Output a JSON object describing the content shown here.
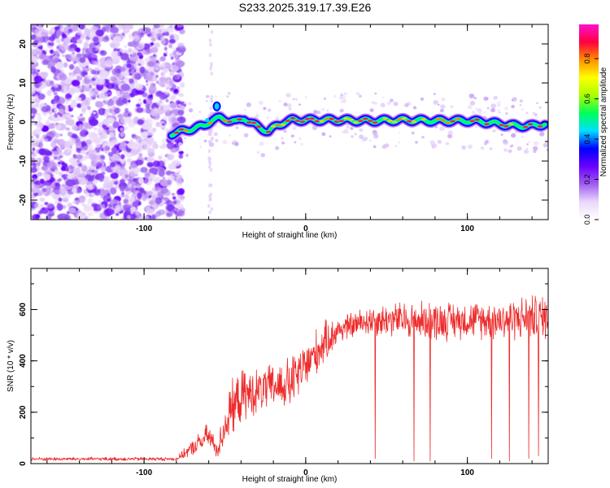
{
  "figure_title": "S233.2025.319.17.39.E26",
  "chart_data": [
    {
      "type": "heatmap",
      "xlabel": "Height of straight line (km)",
      "ylabel": "Frequency (Hz)",
      "xlim": [
        -170,
        150
      ],
      "ylim": [
        -25,
        25
      ],
      "xticks": [
        -100,
        0,
        100
      ],
      "yticks": [
        -20,
        -10,
        0,
        10,
        20
      ],
      "colorbar": {
        "label": "Normalized spectral amplitude",
        "range": [
          0,
          0.97
        ],
        "ticks": [
          0.0,
          0.2,
          0.4,
          0.6,
          0.8
        ],
        "colors": [
          "#ffffff",
          "#e9d8fb",
          "#a05cf0",
          "#6a00ff",
          "#0000ff",
          "#00e0ff",
          "#00ff5a",
          "#a8ff00",
          "#ffff00",
          "#ff9000",
          "#ff0040",
          "#ff10d0"
        ]
      },
      "noise_region": {
        "x": [
          -170,
          -80
        ],
        "freq": [
          -25,
          25
        ]
      },
      "ridge": {
        "x": [
          -83,
          -78,
          -73,
          -68,
          -63,
          -58,
          -53,
          -48,
          -43,
          -38,
          -33,
          -28,
          -23,
          -18,
          -13,
          -8,
          0,
          20,
          40,
          60,
          80,
          100,
          110,
          120,
          130,
          140,
          148
        ],
        "freq": [
          -3,
          -2.5,
          -2,
          -1.5,
          -1,
          0.5,
          1,
          0.5,
          0,
          1,
          -0.5,
          -1.5,
          -2.5,
          -1,
          0,
          0.5,
          0.5,
          0.5,
          0.3,
          0.5,
          0.3,
          0.3,
          0,
          -0.5,
          -1,
          -1,
          -0.5
        ]
      }
    },
    {
      "type": "line",
      "xlabel": "Height of straight line (km)",
      "ylabel": "SNR (10 * v/v)",
      "xlim": [
        -170,
        150
      ],
      "ylim": [
        0,
        760
      ],
      "xticks": [
        -100,
        0,
        100
      ],
      "yticks": [
        0,
        200,
        400,
        600
      ],
      "series": [
        {
          "name": "SNR",
          "color": "#ee2a2a",
          "envelope": {
            "x": [
              -170,
              -120,
              -80,
              -68,
              -60,
              -55,
              -47,
              -40,
              -30,
              -20,
              -10,
              0,
              10,
              20,
              30,
              40,
              60,
              80,
              100,
              120,
              140,
              150
            ],
            "mean": [
              18,
              18,
              18,
              70,
              110,
              50,
              200,
              260,
              280,
              300,
              310,
              380,
              460,
              520,
              540,
              560,
              560,
              555,
              560,
              560,
              570,
              570
            ],
            "spread": [
              8,
              8,
              8,
              40,
              60,
              40,
              120,
              120,
              100,
              100,
              120,
              110,
              100,
              60,
              60,
              70,
              80,
              90,
              80,
              90,
              100,
              100
            ]
          },
          "dropouts": [
            {
              "x": 43,
              "y": 20
            },
            {
              "x": 67,
              "y": 10
            },
            {
              "x": 77,
              "y": 10
            },
            {
              "x": 115,
              "y": 20
            },
            {
              "x": 126,
              "y": 10
            },
            {
              "x": 138,
              "y": 20
            },
            {
              "x": 144,
              "y": 30
            }
          ]
        }
      ]
    }
  ]
}
